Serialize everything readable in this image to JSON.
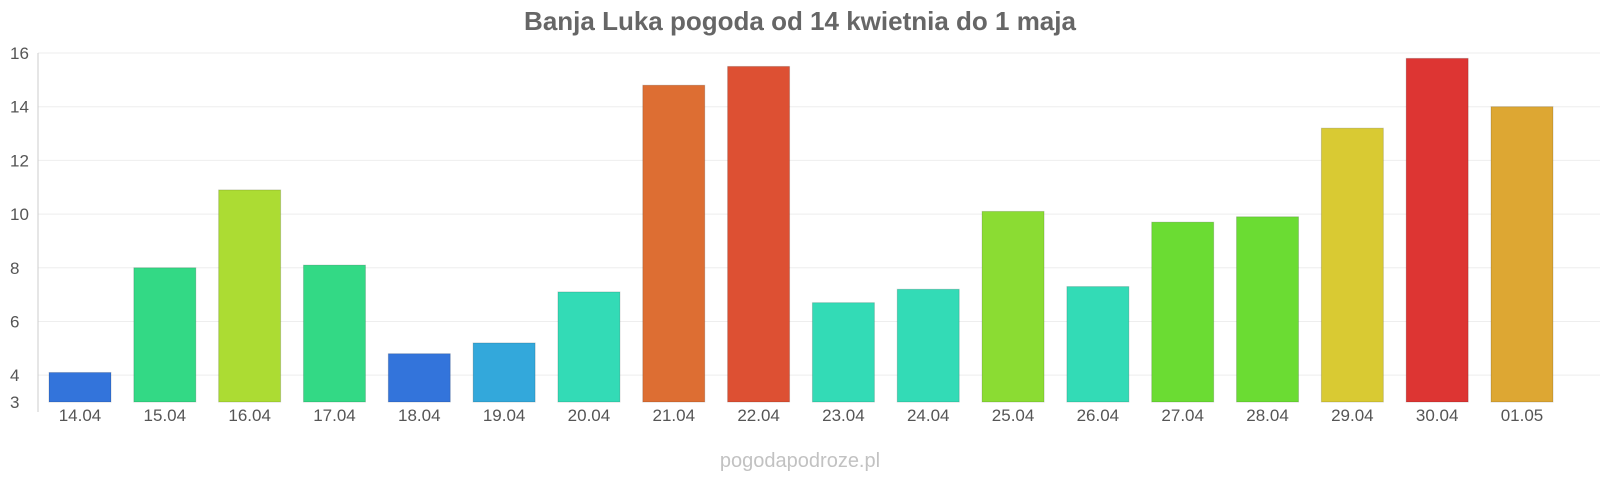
{
  "chart_data": {
    "type": "bar",
    "title": "Banja Luka pogoda od 14 kwietnia do 1 maja",
    "xlabel": "",
    "ylabel": "",
    "ylim": [
      3,
      16
    ],
    "yticks": [
      3,
      4,
      6,
      8,
      10,
      12,
      14,
      16
    ],
    "grid": true,
    "legend": "none",
    "categories": [
      "14.04",
      "15.04",
      "16.04",
      "17.04",
      "18.04",
      "19.04",
      "20.04",
      "21.04",
      "22.04",
      "23.04",
      "24.04",
      "25.04",
      "26.04",
      "27.04",
      "28.04",
      "29.04",
      "30.04",
      "01.05"
    ],
    "values": [
      4.1,
      8.0,
      10.9,
      8.1,
      4.8,
      5.2,
      7.1,
      14.8,
      15.5,
      6.7,
      7.2,
      10.1,
      7.3,
      9.7,
      9.9,
      13.2,
      15.8,
      14.0
    ],
    "colors": [
      "#3374db",
      "#33d985",
      "#acdc33",
      "#33d985",
      "#3374db",
      "#33a8db",
      "#33dbb6",
      "#dd6e33",
      "#dd5033",
      "#33dbb6",
      "#33dbb6",
      "#8bdc33",
      "#33dbb6",
      "#6bdc33",
      "#6bdc33",
      "#d9ca33",
      "#dd3533",
      "#dda733"
    ]
  },
  "watermark": "pogodapodroze.pl"
}
